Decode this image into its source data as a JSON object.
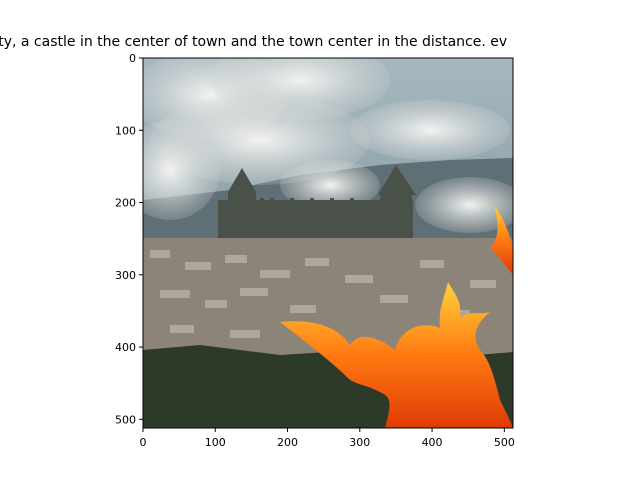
{
  "chart_data": {
    "type": "image",
    "title": "party,  a castle in the center of town and the town center in the distance. ev",
    "x_ticks": [
      0,
      100,
      200,
      300,
      400,
      500
    ],
    "y_ticks": [
      0,
      100,
      200,
      300,
      400,
      500
    ],
    "xlim": [
      0,
      512
    ],
    "ylim": [
      512,
      0
    ],
    "image_description_icon": "castle-town-fire-photo-icon",
    "colors": {
      "sky": "#7f97a3",
      "smoke": "#e6e6e4",
      "hills": "#5f6f76",
      "town": "#8d8479",
      "forest": "#2d3a27",
      "fire": "#ff7a12"
    }
  }
}
